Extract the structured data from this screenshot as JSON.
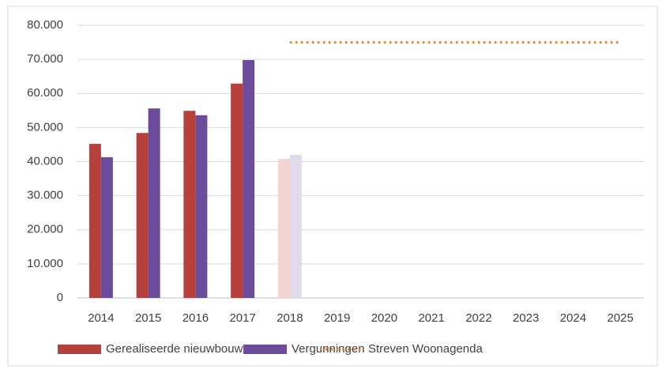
{
  "chart_data": {
    "type": "bar",
    "categories": [
      "2014",
      "2015",
      "2016",
      "2017",
      "2018",
      "2019",
      "2020",
      "2021",
      "2022",
      "2023",
      "2024",
      "2025"
    ],
    "series": [
      {
        "name": "Gerealiseerde nieuwbouw",
        "color": "#b5403c",
        "values": [
          45200,
          48400,
          54900,
          62900,
          40800,
          null,
          null,
          null,
          null,
          null,
          null,
          null
        ],
        "colors": [
          "#b5403c",
          "#b5403c",
          "#b5403c",
          "#b5403c",
          "#f2d4d2",
          null,
          null,
          null,
          null,
          null,
          null,
          null
        ]
      },
      {
        "name": "Vergunningen",
        "color": "#6b4c9a",
        "values": [
          41300,
          55600,
          53600,
          69800,
          42000,
          null,
          null,
          null,
          null,
          null,
          null,
          null
        ],
        "colors": [
          "#6b4c9a",
          "#6b4c9a",
          "#6b4c9a",
          "#6b4c9a",
          "#e0dbea",
          null,
          null,
          null,
          null,
          null,
          null,
          null
        ]
      },
      {
        "name": "Streven Woonagenda",
        "type": "line",
        "style": "dotted",
        "color": "#ed7d31",
        "values": [
          null,
          null,
          null,
          null,
          75000,
          75000,
          75000,
          75000,
          75000,
          75000,
          75000,
          75000
        ]
      }
    ],
    "ylim": [
      0,
      80000
    ],
    "yticks": [
      0,
      {
        "value": 10000,
        "label": "10.000"
      },
      {
        "value": 20000,
        "label": "20.000"
      },
      {
        "value": 30000,
        "label": "30.000"
      },
      {
        "value": 40000,
        "label": "40.000"
      },
      {
        "value": 50000,
        "label": "50.000"
      },
      {
        "value": 60000,
        "label": "60.000"
      },
      {
        "value": 70000,
        "label": "70.000"
      },
      {
        "value": 80000,
        "label": "80.000"
      }
    ],
    "grid": true,
    "legend": "bottom"
  }
}
